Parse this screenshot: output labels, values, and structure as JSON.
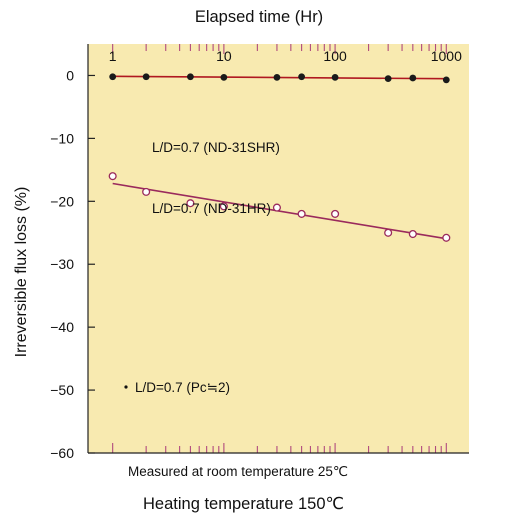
{
  "chart_data": {
    "type": "scatter",
    "title": "",
    "top_axis_label": "Elapsed time (Hr)",
    "ylabel": "Irreversible flux loss (%)",
    "x_scale": "log",
    "xlim": [
      0.6,
      1600
    ],
    "ylim": [
      -60,
      5
    ],
    "x_ticks": [
      1,
      10,
      100,
      1000
    ],
    "x_tick_labels": [
      "1",
      "10",
      "100",
      "1000"
    ],
    "y_ticks": [
      0,
      -10,
      -20,
      -30,
      -40,
      -50,
      -60
    ],
    "y_tick_labels": [
      "0",
      "−10",
      "−20",
      "−30",
      "−40",
      "−50",
      "−60"
    ],
    "grid": false,
    "background_color": "#f8eab0",
    "series": [
      {
        "name": "L/D=0.7 (ND-31SHR)",
        "marker": "filled-circle",
        "color": "#b01820",
        "points": [
          {
            "x": 1,
            "y": -0.2
          },
          {
            "x": 2,
            "y": -0.2
          },
          {
            "x": 5,
            "y": -0.2
          },
          {
            "x": 10,
            "y": -0.3
          },
          {
            "x": 30,
            "y": -0.3
          },
          {
            "x": 50,
            "y": -0.2
          },
          {
            "x": 100,
            "y": -0.3
          },
          {
            "x": 300,
            "y": -0.5
          },
          {
            "x": 500,
            "y": -0.4
          },
          {
            "x": 1000,
            "y": -0.7
          }
        ]
      },
      {
        "name": "L/D=0.7 (ND-31HR)",
        "marker": "open-circle",
        "color": "#9a2a5c",
        "points": [
          {
            "x": 1,
            "y": -16
          },
          {
            "x": 2,
            "y": -18.5
          },
          {
            "x": 5,
            "y": -20.3
          },
          {
            "x": 10,
            "y": -20.8
          },
          {
            "x": 30,
            "y": -21
          },
          {
            "x": 50,
            "y": -22
          },
          {
            "x": 100,
            "y": -22
          },
          {
            "x": 300,
            "y": -25
          },
          {
            "x": 500,
            "y": -25.2
          },
          {
            "x": 1000,
            "y": -25.8
          }
        ]
      }
    ],
    "annotation": "L/D=0.7 (Pc≒2)",
    "notes": [
      "Measured at room temperature 25℃",
      "Heating temperature 150℃"
    ]
  }
}
